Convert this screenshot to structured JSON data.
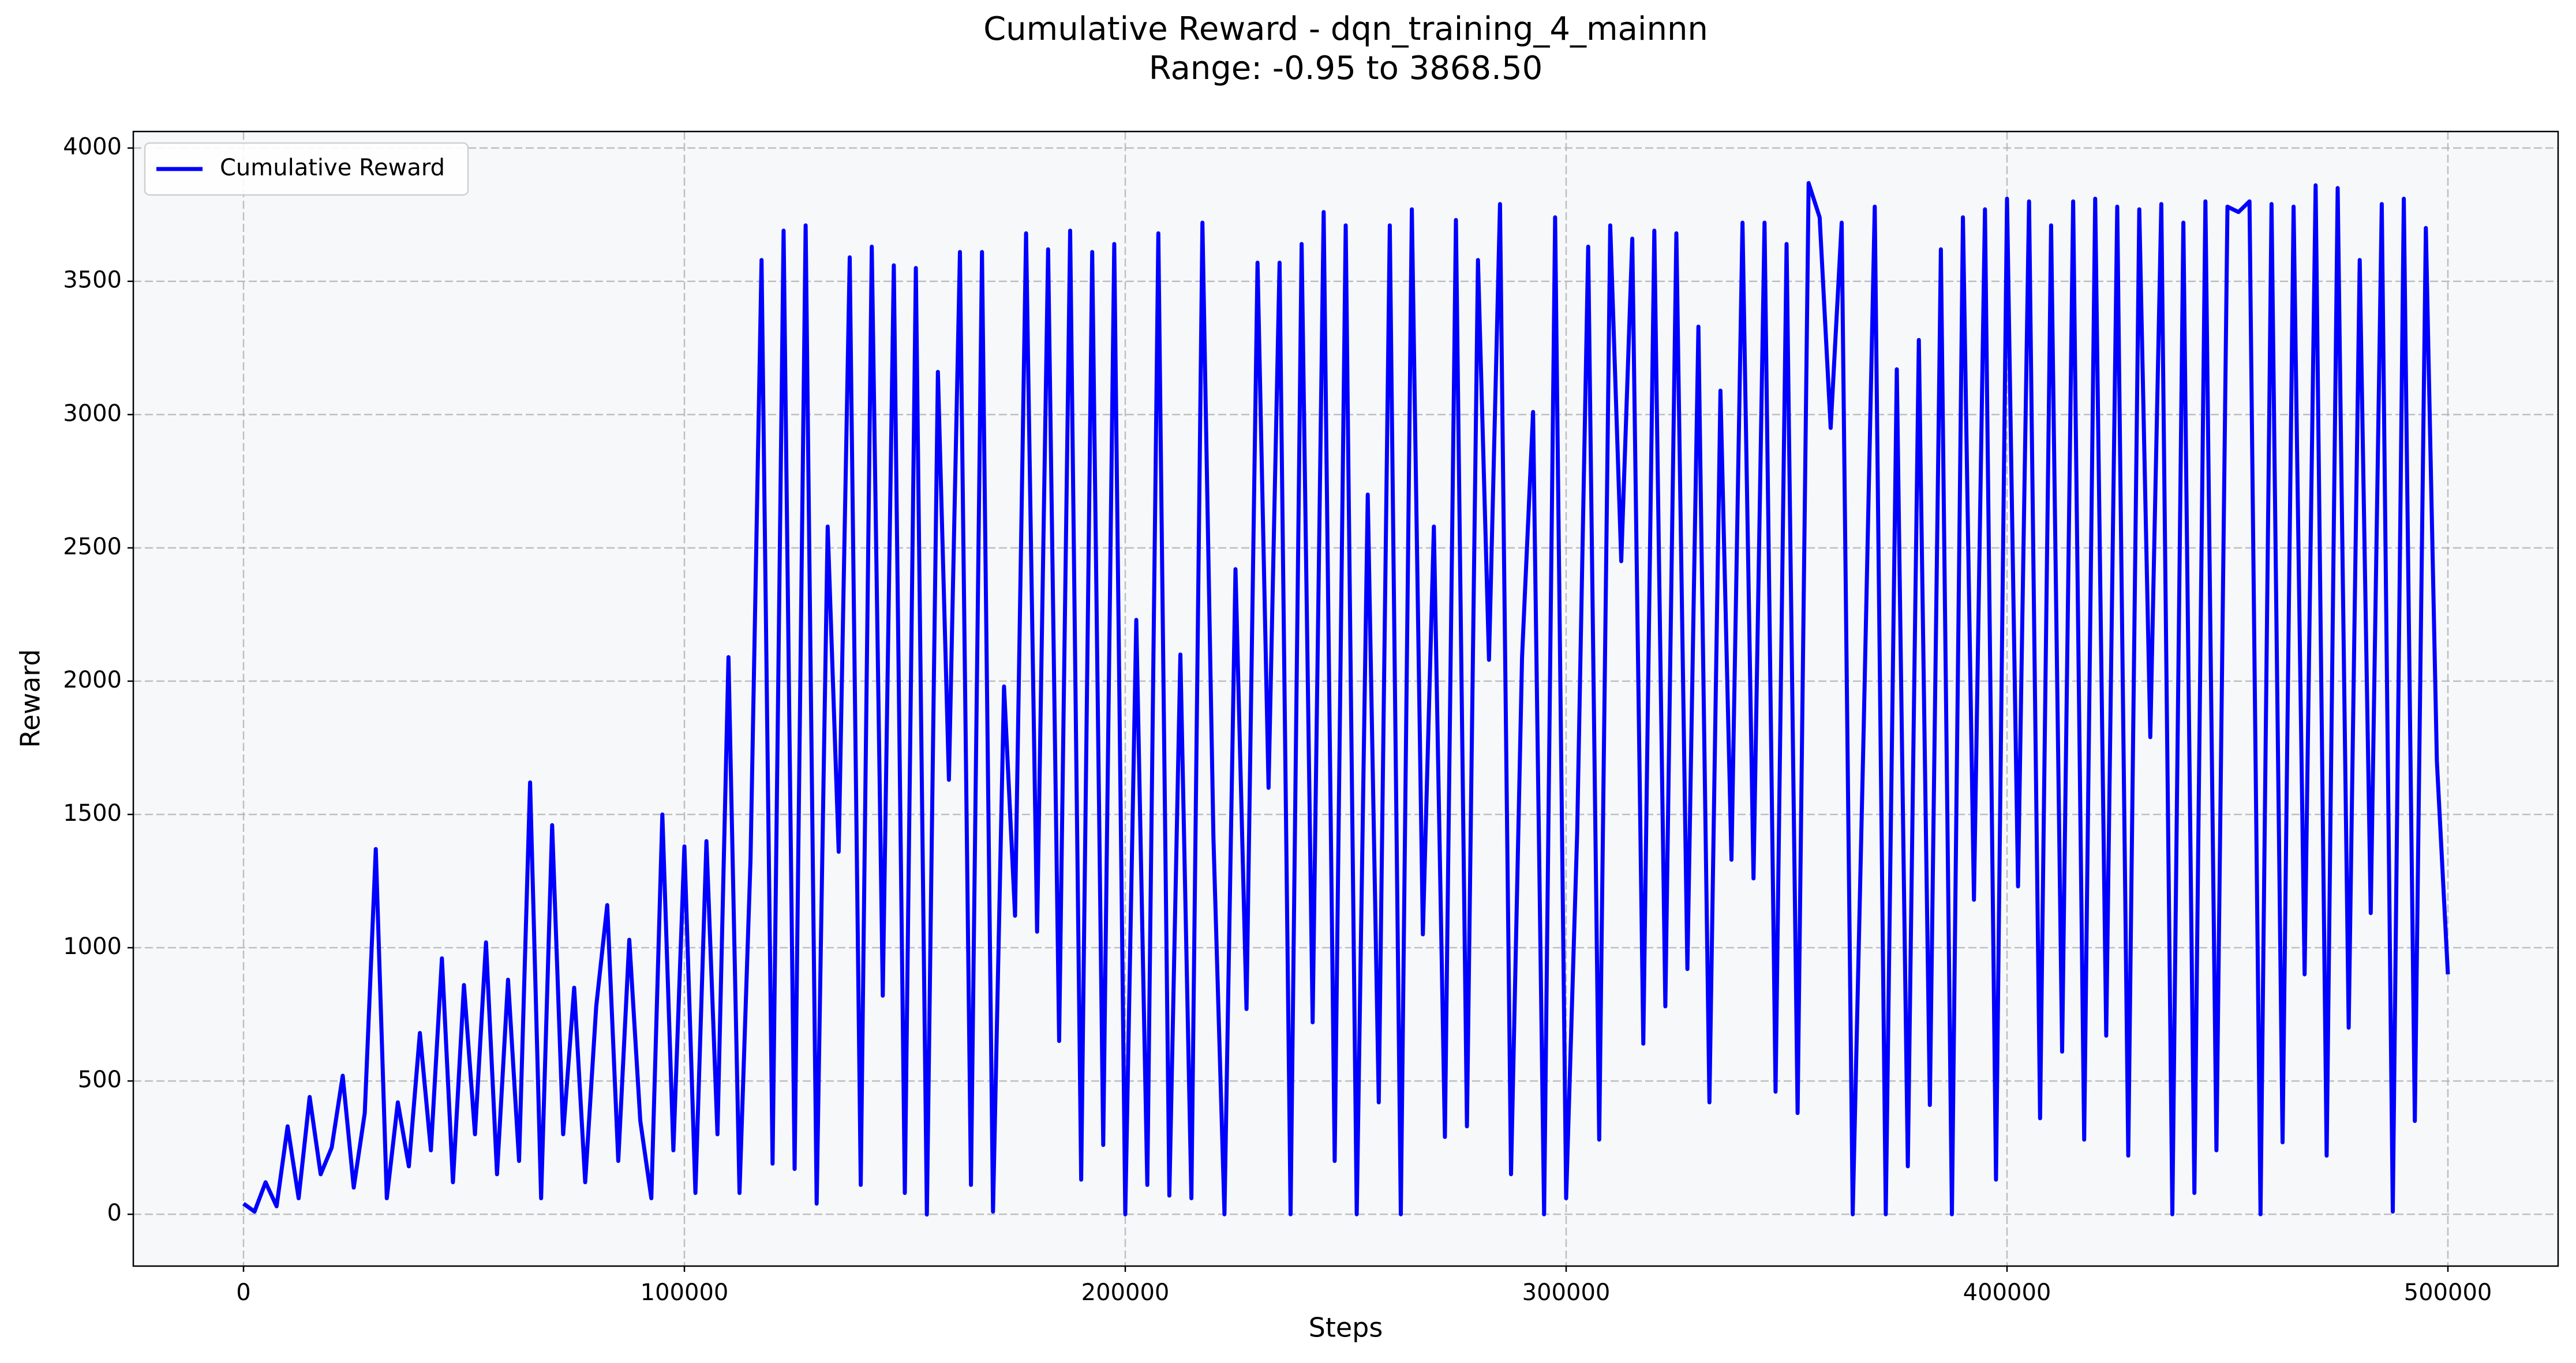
{
  "chart_data": {
    "type": "line",
    "title": "Cumulative Reward - dqn_training_4_mainnn",
    "subtitle": "Range: -0.95 to 3868.50",
    "x_label": "Steps",
    "y_label": "Reward",
    "x": [
      0,
      2500,
      5000,
      7500,
      10000,
      12500,
      15000,
      17500,
      20000,
      22500,
      25000,
      27500,
      30000,
      32500,
      35000,
      37500,
      40000,
      42500,
      45000,
      47500,
      50000,
      52500,
      55000,
      57500,
      60000,
      62500,
      65000,
      67500,
      70000,
      72500,
      75000,
      77500,
      80000,
      82500,
      85000,
      87500,
      90000,
      92500,
      95000,
      97500,
      100000,
      102500,
      105000,
      107500,
      110000,
      112500,
      115000,
      117500,
      120000,
      122500,
      125000,
      127500,
      130000,
      132500,
      135000,
      137500,
      140000,
      142500,
      145000,
      147500,
      150000,
      152500,
      155000,
      157500,
      160000,
      162500,
      165000,
      167500,
      170000,
      172500,
      175000,
      177500,
      180000,
      182500,
      185000,
      187500,
      190000,
      192500,
      195000,
      197500,
      200000,
      202500,
      205000,
      207500,
      210000,
      212500,
      215000,
      217500,
      220000,
      222500,
      225000,
      227500,
      230000,
      232500,
      235000,
      237500,
      240000,
      242500,
      245000,
      247500,
      250000,
      252500,
      255000,
      257500,
      260000,
      262500,
      265000,
      267500,
      270000,
      272500,
      275000,
      277500,
      280000,
      282500,
      285000,
      287500,
      290000,
      292500,
      295000,
      297500,
      300000,
      302500,
      305000,
      307500,
      310000,
      312500,
      315000,
      317500,
      320000,
      322500,
      325000,
      327500,
      330000,
      332500,
      335000,
      337500,
      340000,
      342500,
      345000,
      347500,
      350000,
      352500,
      355000,
      357500,
      360000,
      362500,
      365000,
      367500,
      370000,
      372500,
      375000,
      377500,
      380000,
      382500,
      385000,
      387500,
      390000,
      392500,
      395000,
      397500,
      400000,
      402500,
      405000,
      407500,
      410000,
      412500,
      415000,
      417500,
      420000,
      422500,
      425000,
      427500,
      430000,
      432500,
      435000,
      437500,
      440000,
      442500,
      445000,
      447500,
      450000,
      452500,
      455000,
      457500,
      460000,
      462500,
      465000,
      467500,
      470000,
      472500,
      475000,
      477500,
      480000,
      482500,
      485000,
      487500,
      490000,
      492500,
      495000,
      497500,
      500000
    ],
    "series": [
      {
        "name": "Cumulative Reward",
        "color": "#0000ff",
        "values": [
          40,
          10,
          120,
          30,
          330,
          60,
          440,
          150,
          250,
          520,
          100,
          380,
          1370,
          60,
          420,
          180,
          680,
          240,
          960,
          120,
          860,
          300,
          1020,
          150,
          880,
          200,
          1620,
          60,
          1460,
          300,
          850,
          120,
          780,
          1160,
          200,
          1030,
          350,
          60,
          1500,
          240,
          1380,
          80,
          1400,
          300,
          2090,
          80,
          1330,
          3580,
          190,
          3690,
          170,
          3710,
          40,
          2580,
          1360,
          3590,
          110,
          3630,
          820,
          3560,
          80,
          3550,
          -0.95,
          3160,
          1630,
          3610,
          110,
          3610,
          10,
          1980,
          1120,
          3680,
          1060,
          3620,
          650,
          3690,
          130,
          3610,
          260,
          3640,
          0,
          2230,
          110,
          3680,
          70,
          2100,
          60,
          3720,
          1410,
          0,
          2420,
          770,
          3570,
          1600,
          3570,
          0,
          3640,
          720,
          3760,
          200,
          3710,
          0,
          2700,
          420,
          3710,
          0,
          3770,
          1050,
          2580,
          290,
          3730,
          330,
          3580,
          2080,
          3790,
          150,
          2090,
          3010,
          0,
          3740,
          60,
          1430,
          3630,
          280,
          3710,
          2450,
          3660,
          640,
          3690,
          780,
          3680,
          920,
          3330,
          420,
          3090,
          1330,
          3720,
          1260,
          3720,
          460,
          3640,
          380,
          3868.5,
          3740,
          2950,
          3720,
          0,
          1830,
          3780,
          0,
          3170,
          180,
          3280,
          410,
          3620,
          0,
          3740,
          1180,
          3770,
          130,
          3810,
          1230,
          3800,
          360,
          3710,
          610,
          3800,
          280,
          3810,
          670,
          3780,
          220,
          3770,
          1790,
          3790,
          0,
          3720,
          80,
          3800,
          240,
          3780,
          3760,
          3800,
          0,
          3790,
          270,
          3780,
          900,
          3860,
          220,
          3850,
          700,
          3580,
          1130,
          3790,
          10,
          3810,
          350,
          3700,
          1700,
          900
        ]
      }
    ],
    "xlim": [
      -25000,
      525000
    ],
    "ylim": [
      -194.4,
      4062.0
    ],
    "xticks": [
      0,
      100000,
      200000,
      300000,
      400000,
      500000
    ],
    "yticks": [
      0,
      500,
      1000,
      1500,
      2000,
      2500,
      3000,
      3500,
      4000
    ],
    "grid": true,
    "legend": "upper left"
  }
}
